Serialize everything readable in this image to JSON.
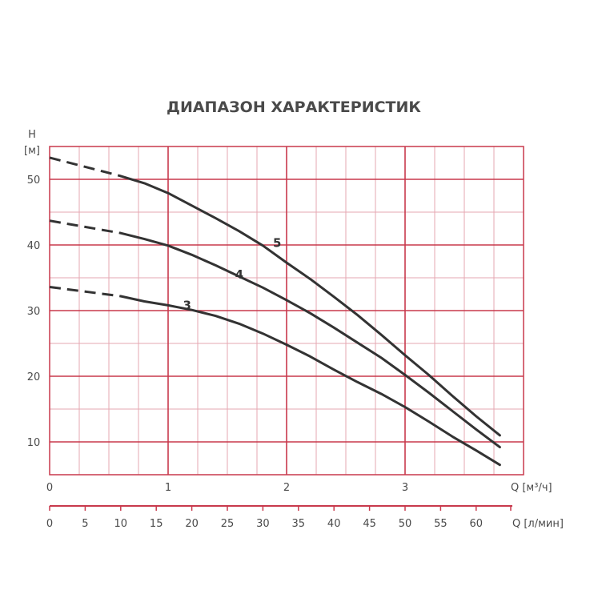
{
  "chart_data": {
    "type": "line",
    "title": "ДИАПАЗОН ХАРАКТЕРИСТИК",
    "y_axis": {
      "label_line1": "H",
      "label_line2": "[м]",
      "ticks": [
        10,
        20,
        30,
        40,
        50
      ],
      "range": [
        5,
        55
      ]
    },
    "x_axis_primary": {
      "label": "Q [м³/ч]",
      "ticks": [
        0,
        1,
        2,
        3
      ],
      "range": [
        0,
        4
      ],
      "grid_major_step": 1,
      "grid_minor_step": 0.25
    },
    "x_axis_secondary": {
      "label": "Q [л/мин]",
      "ticks": [
        0,
        5,
        10,
        15,
        20,
        25,
        30,
        35,
        40,
        45,
        50,
        55,
        60
      ]
    },
    "grid": true,
    "colors": {
      "grid": "#c8394c",
      "grid_minor": "#e6a7b2",
      "frame": "#c8394c",
      "curve": "#333333",
      "text": "#4a4a4a"
    },
    "series": [
      {
        "name": "5",
        "dashed": {
          "x": [
            0,
            0.6
          ],
          "y": [
            53.3,
            50.5
          ]
        },
        "solid": {
          "x": [
            0.6,
            0.8,
            1.0,
            1.2,
            1.4,
            1.6,
            1.8,
            2.0,
            2.2,
            2.4,
            2.6,
            2.8,
            3.0,
            3.2,
            3.4,
            3.6,
            3.8
          ],
          "y": [
            50.5,
            49.4,
            47.9,
            46.0,
            44.1,
            42.1,
            39.9,
            37.3,
            34.8,
            32.1,
            29.3,
            26.3,
            23.2,
            20.2,
            17.0,
            13.9,
            11.0
          ]
        }
      },
      {
        "name": "4",
        "dashed": {
          "x": [
            0,
            0.6
          ],
          "y": [
            43.7,
            41.8
          ]
        },
        "solid": {
          "x": [
            0.6,
            0.8,
            1.0,
            1.2,
            1.4,
            1.6,
            1.8,
            2.0,
            2.2,
            2.4,
            2.6,
            2.8,
            3.0,
            3.2,
            3.4,
            3.6,
            3.8
          ],
          "y": [
            41.8,
            40.9,
            39.9,
            38.5,
            36.9,
            35.2,
            33.5,
            31.6,
            29.6,
            27.4,
            25.1,
            22.8,
            20.2,
            17.5,
            14.7,
            11.9,
            9.2
          ]
        }
      },
      {
        "name": "3",
        "dashed": {
          "x": [
            0,
            0.6
          ],
          "y": [
            33.6,
            32.2
          ]
        },
        "solid": {
          "x": [
            0.6,
            0.8,
            1.0,
            1.2,
            1.4,
            1.6,
            1.8,
            2.0,
            2.2,
            2.4,
            2.6,
            2.8,
            3.0,
            3.2,
            3.4,
            3.6,
            3.8
          ],
          "y": [
            32.2,
            31.4,
            30.8,
            30.1,
            29.2,
            28.0,
            26.5,
            24.8,
            23.0,
            21.0,
            19.1,
            17.3,
            15.3,
            13.1,
            10.8,
            8.7,
            6.5
          ]
        }
      }
    ],
    "curve_labels": [
      {
        "text": "5",
        "x": 1.92,
        "y": 40.3
      },
      {
        "text": "4",
        "x": 1.6,
        "y": 35.5
      },
      {
        "text": "3",
        "x": 1.16,
        "y": 30.8
      }
    ]
  }
}
